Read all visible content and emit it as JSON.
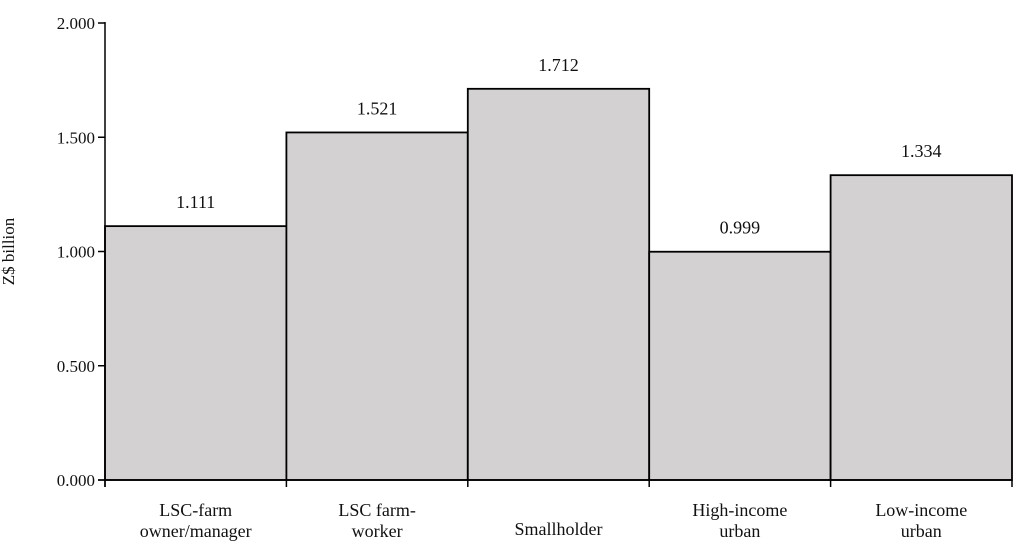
{
  "chart_data": {
    "type": "bar",
    "ylabel": "Z$ billion",
    "xlabel": "",
    "ylim": [
      0,
      2.0
    ],
    "yticks": [
      "0.000",
      "0.500",
      "1.000",
      "1.500",
      "2.000"
    ],
    "categories": [
      [
        "LSC-farm",
        "owner/manager"
      ],
      [
        "LSC farm-",
        "worker"
      ],
      [
        "Smallholder"
      ],
      [
        "High-income",
        "urban"
      ],
      [
        "Low-income",
        "urban"
      ]
    ],
    "values": [
      1.111,
      1.521,
      1.712,
      0.999,
      1.334
    ],
    "value_labels": [
      "1.111",
      "1.521",
      "1.712",
      "0.999",
      "1.334"
    ],
    "bar_color": "#d3d1d2",
    "grid": false,
    "legend": "none"
  }
}
